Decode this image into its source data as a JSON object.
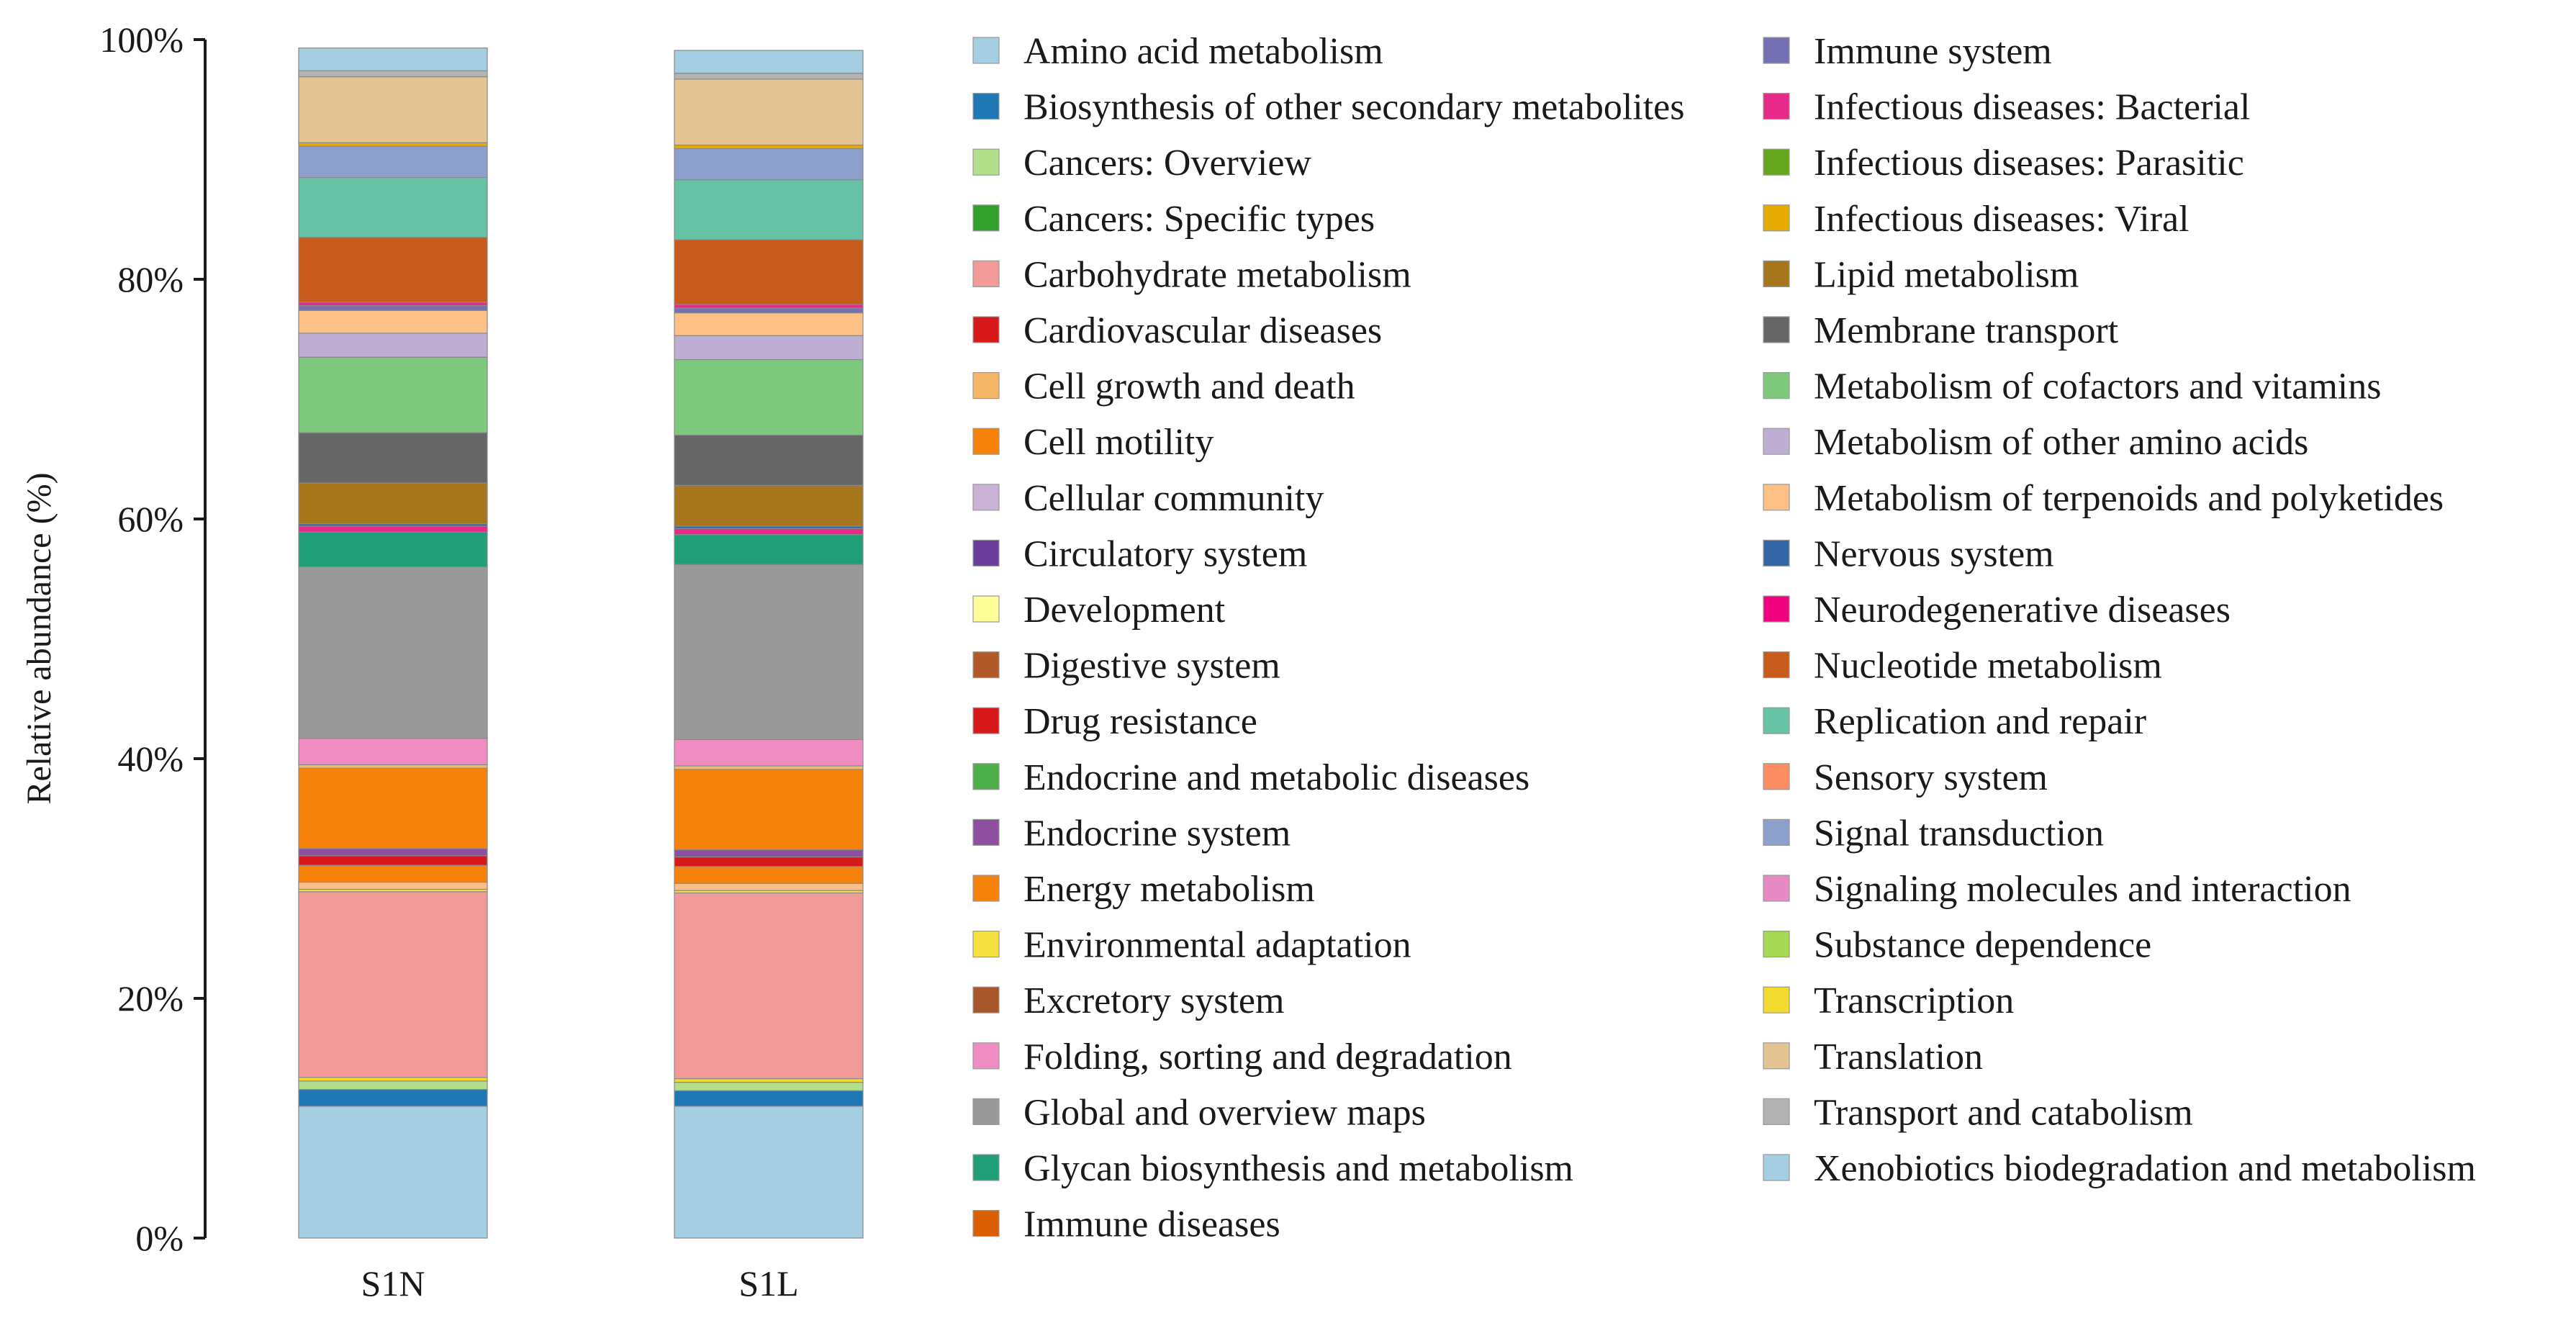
{
  "chart_data": {
    "type": "bar",
    "stacked": true,
    "title": "",
    "xlabel": "",
    "ylabel": "Relative abundance (%)",
    "ylim": [
      0,
      100
    ],
    "yticks": [
      "0%",
      "20%",
      "40%",
      "60%",
      "80%",
      "100%"
    ],
    "legend_position": "right",
    "categories": [
      "S1N",
      "S1L"
    ],
    "series": [
      {
        "name": "Xenobiotics biodegradation and metabolism",
        "color": "#a6cee3",
        "values": [
          11.0,
          11.0
        ]
      },
      {
        "name": "Biosynthesis of other secondary metabolites",
        "color": "#1f78b4",
        "values": [
          1.4,
          1.3
        ]
      },
      {
        "name": "Cancers: Overview",
        "color": "#b2df8a",
        "values": [
          0.7,
          0.7
        ]
      },
      {
        "name": "Transcription",
        "color": "#f3da2e",
        "values": [
          0.3,
          0.3
        ]
      },
      {
        "name": "Carbohydrate metabolism",
        "color": "#f29a97",
        "values": [
          15.5,
          15.5
        ]
      },
      {
        "name": "Environmental adaptation",
        "color": "#f5e142",
        "values": [
          0.2,
          0.2
        ]
      },
      {
        "name": "Metabolism of terpenoids and polyketides",
        "color": "#f8bf8a",
        "values": [
          0.6,
          0.6
        ]
      },
      {
        "name": "Energy metabolism",
        "color": "#f6820c",
        "values": [
          1.4,
          1.4
        ]
      },
      {
        "name": "Drug resistance",
        "color": "#d7191c",
        "values": [
          0.8,
          0.8
        ]
      },
      {
        "name": "Endocrine system",
        "color": "#8e4fa0",
        "values": [
          0.6,
          0.6
        ]
      },
      {
        "name": "Cell motility",
        "color": "#f6820c",
        "values": [
          6.7,
          6.7
        ]
      },
      {
        "name": "Cell growth and death",
        "color": "#f3b767",
        "values": [
          0.3,
          0.3
        ]
      },
      {
        "name": "Signaling molecules and interaction",
        "color": "#ef8cc1",
        "values": [
          2.2,
          2.2
        ]
      },
      {
        "name": "Global and overview maps",
        "color": "#999999",
        "values": [
          14.3,
          14.6
        ]
      },
      {
        "name": "Glycan biosynthesis and metabolism",
        "color": "#1f9e77",
        "values": [
          2.9,
          2.5
        ]
      },
      {
        "name": "Infectious diseases: Bacterial",
        "color": "#e7298a",
        "values": [
          0.5,
          0.5
        ]
      },
      {
        "name": "Nervous system",
        "color": "#3566a8",
        "values": [
          0.2,
          0.2
        ]
      },
      {
        "name": "Lipid metabolism",
        "color": "#a6761d",
        "values": [
          3.4,
          3.4
        ]
      },
      {
        "name": "Membrane transport",
        "color": "#666666",
        "values": [
          4.2,
          4.2
        ]
      },
      {
        "name": "Metabolism of cofactors and vitamins",
        "color": "#7fc97f",
        "values": [
          6.3,
          6.3
        ]
      },
      {
        "name": "Metabolism of other amino acids",
        "color": "#beaed4",
        "values": [
          2.0,
          2.0
        ]
      },
      {
        "name": "Metabolism of terpenoids and polyketides",
        "color": "#fdc086",
        "values": [
          1.9,
          1.9
        ]
      },
      {
        "name": "Immune system",
        "color": "#7570b3",
        "values": [
          0.4,
          0.4
        ]
      },
      {
        "name": "Infectious diseases: Bacterial",
        "color": "#e7298a",
        "values": [
          0.3,
          0.3
        ]
      },
      {
        "name": "Nucleotide metabolism",
        "color": "#c75b1b",
        "values": [
          5.4,
          5.4
        ]
      },
      {
        "name": "Replication and repair",
        "color": "#66c2a5",
        "values": [
          5.0,
          5.0
        ]
      },
      {
        "name": "Signal transduction",
        "color": "#8da0cb",
        "values": [
          2.6,
          2.6
        ]
      },
      {
        "name": "Infectious diseases: Viral",
        "color": "#e6ab02",
        "values": [
          0.3,
          0.3
        ]
      },
      {
        "name": "Translation",
        "color": "#e5c494",
        "values": [
          5.5,
          5.5
        ]
      },
      {
        "name": "Transport and catabolism",
        "color": "#b3b3b3",
        "values": [
          0.5,
          0.5
        ]
      },
      {
        "name": "Amino acid metabolism",
        "color": "#a6cee3",
        "values": [
          1.9,
          1.9
        ]
      }
    ],
    "legend": [
      {
        "label": "Amino acid metabolism",
        "color": "#a6cee3"
      },
      {
        "label": "Biosynthesis of other secondary metabolites",
        "color": "#1f78b4"
      },
      {
        "label": "Cancers: Overview",
        "color": "#b2df8a"
      },
      {
        "label": "Cancers: Specific types",
        "color": "#33a02c"
      },
      {
        "label": "Carbohydrate metabolism",
        "color": "#f29a97"
      },
      {
        "label": "Cardiovascular diseases",
        "color": "#d7191c"
      },
      {
        "label": "Cell growth and death",
        "color": "#f3b767"
      },
      {
        "label": "Cell motility",
        "color": "#f6820c"
      },
      {
        "label": "Cellular community",
        "color": "#cab2d6"
      },
      {
        "label": "Circulatory system",
        "color": "#6a3d9a"
      },
      {
        "label": "Development",
        "color": "#ffff99"
      },
      {
        "label": "Digestive system",
        "color": "#b15928"
      },
      {
        "label": "Drug resistance",
        "color": "#d7191c"
      },
      {
        "label": "Endocrine and metabolic diseases",
        "color": "#4daf4a"
      },
      {
        "label": "Endocrine system",
        "color": "#8e4fa0"
      },
      {
        "label": "Energy metabolism",
        "color": "#f6820c"
      },
      {
        "label": "Environmental adaptation",
        "color": "#f5e142"
      },
      {
        "label": "Excretory system",
        "color": "#a65628"
      },
      {
        "label": "Folding, sorting and degradation",
        "color": "#ef8cc1"
      },
      {
        "label": "Global and overview maps",
        "color": "#999999"
      },
      {
        "label": "Glycan biosynthesis and metabolism",
        "color": "#1f9e77"
      },
      {
        "label": "Immune diseases",
        "color": "#d95f02"
      },
      {
        "label": "Immune system",
        "color": "#7570b3"
      },
      {
        "label": "Infectious diseases: Bacterial",
        "color": "#e7298a"
      },
      {
        "label": "Infectious diseases: Parasitic",
        "color": "#66a61e"
      },
      {
        "label": "Infectious diseases: Viral",
        "color": "#e6ab02"
      },
      {
        "label": "Lipid metabolism",
        "color": "#a6761d"
      },
      {
        "label": "Membrane transport",
        "color": "#666666"
      },
      {
        "label": "Metabolism of cofactors and vitamins",
        "color": "#7fc97f"
      },
      {
        "label": "Metabolism of other amino acids",
        "color": "#beaed4"
      },
      {
        "label": "Metabolism of terpenoids and polyketides",
        "color": "#fdc086"
      },
      {
        "label": "Nervous system",
        "color": "#3566a8"
      },
      {
        "label": "Neurodegenerative diseases",
        "color": "#f0027f"
      },
      {
        "label": "Nucleotide metabolism",
        "color": "#c75b1b"
      },
      {
        "label": "Replication and repair",
        "color": "#66c2a5"
      },
      {
        "label": "Sensory system",
        "color": "#fc8d62"
      },
      {
        "label": "Signal transduction",
        "color": "#8da0cb"
      },
      {
        "label": "Signaling molecules and interaction",
        "color": "#e78ac3"
      },
      {
        "label": "Substance dependence",
        "color": "#a6d854"
      },
      {
        "label": "Transcription",
        "color": "#f3da2e"
      },
      {
        "label": "Translation",
        "color": "#e5c494"
      },
      {
        "label": "Transport and catabolism",
        "color": "#b3b3b3"
      },
      {
        "label": "Xenobiotics biodegradation and metabolism",
        "color": "#a6cee3"
      }
    ]
  }
}
